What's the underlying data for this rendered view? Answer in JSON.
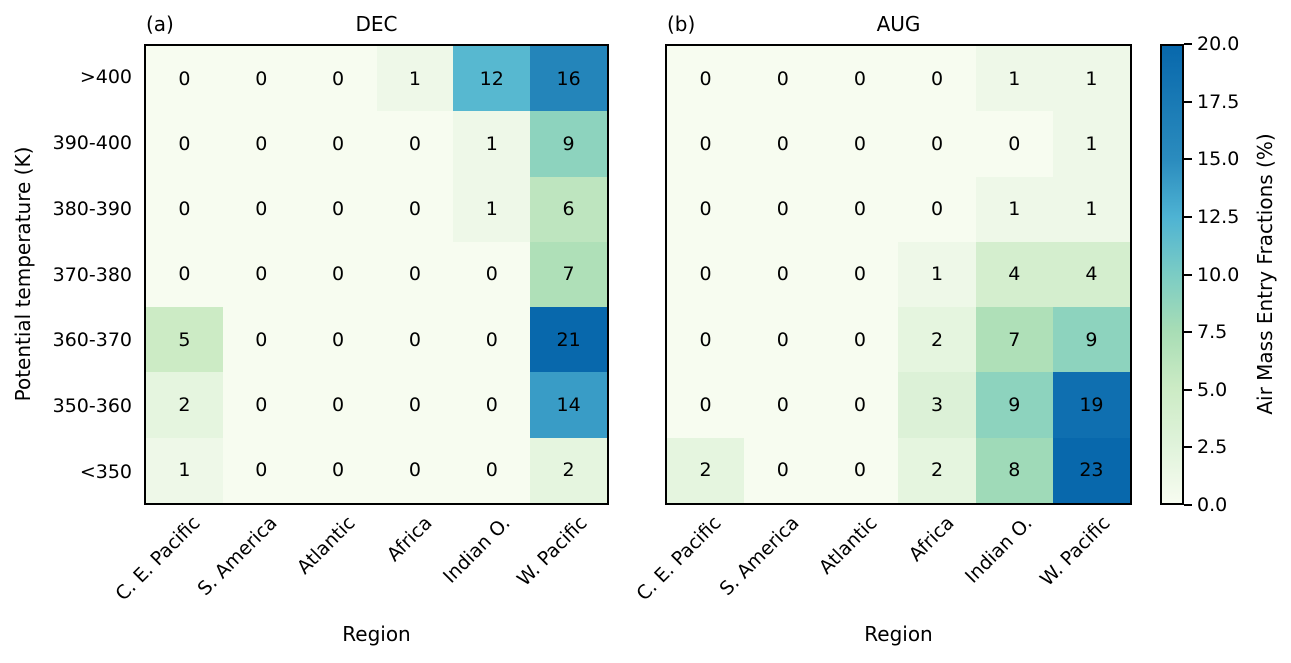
{
  "chart_data": [
    {
      "type": "heatmap",
      "panel": "a",
      "corner_label": "(a)",
      "title": "DEC",
      "xlabel": "Region",
      "ylabel": "Potential temperature (K)",
      "x_categories": [
        "C. E. Pacific",
        "S. America",
        "Atlantic",
        "Africa",
        "Indian O.",
        "W. Pacific"
      ],
      "y_categories": [
        ">400",
        "390-400",
        "380-390",
        "370-380",
        "360-370",
        "350-360",
        "<350"
      ],
      "values": [
        [
          0,
          0,
          0,
          1,
          12,
          16
        ],
        [
          0,
          0,
          0,
          0,
          1,
          9
        ],
        [
          0,
          0,
          0,
          0,
          1,
          6
        ],
        [
          0,
          0,
          0,
          0,
          0,
          7
        ],
        [
          5,
          0,
          0,
          0,
          0,
          21
        ],
        [
          2,
          0,
          0,
          0,
          0,
          14
        ],
        [
          1,
          0,
          0,
          0,
          0,
          2
        ]
      ],
      "annotation_color": "#000000"
    },
    {
      "type": "heatmap",
      "panel": "b",
      "corner_label": "(b)",
      "title": "AUG",
      "xlabel": "Region",
      "ylabel": "Potential temperature (K)",
      "x_categories": [
        "C. E. Pacific",
        "S. America",
        "Atlantic",
        "Africa",
        "Indian O.",
        "W. Pacific"
      ],
      "y_categories": [
        ">400",
        "390-400",
        "380-390",
        "370-380",
        "360-370",
        "350-360",
        "<350"
      ],
      "values": [
        [
          0,
          0,
          0,
          0,
          1,
          1
        ],
        [
          0,
          0,
          0,
          0,
          0,
          1
        ],
        [
          0,
          0,
          0,
          0,
          1,
          1
        ],
        [
          0,
          0,
          0,
          1,
          4,
          4
        ],
        [
          0,
          0,
          0,
          2,
          7,
          9
        ],
        [
          0,
          0,
          0,
          3,
          9,
          19
        ],
        [
          2,
          0,
          0,
          2,
          8,
          23
        ]
      ],
      "annotation_color": "#000000"
    }
  ],
  "colorbar": {
    "label": "Air Mass Entry Fractions (%)",
    "vmin": 0,
    "vmax": 20,
    "ticks": [
      "20.0",
      "17.5",
      "15.0",
      "12.5",
      "10.0",
      "7.5",
      "5.0",
      "2.5",
      "0.0"
    ],
    "colormap": [
      {
        "t": 0.0,
        "color": "#f7fcf0"
      },
      {
        "t": 0.125,
        "color": "#e0f3db"
      },
      {
        "t": 0.25,
        "color": "#ccebc5"
      },
      {
        "t": 0.375,
        "color": "#a8ddb5"
      },
      {
        "t": 0.5,
        "color": "#7bccc4"
      },
      {
        "t": 0.625,
        "color": "#4eb3d3"
      },
      {
        "t": 0.75,
        "color": "#2b8cbe"
      },
      {
        "t": 1.0,
        "color": "#0868ac"
      }
    ]
  }
}
